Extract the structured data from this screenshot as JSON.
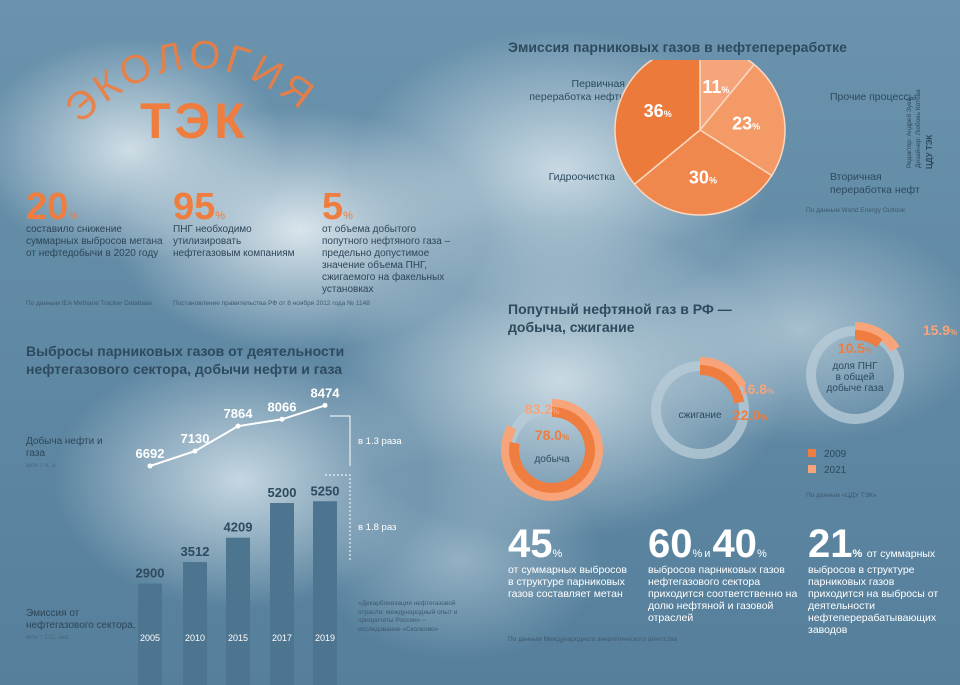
{
  "title": {
    "line1": "ЭКОЛОГИЯ",
    "line2": "ТЭК"
  },
  "credits": {
    "editor": "Редактор: Андрей Зуев",
    "designer": "Дизайнер: Любовь Котова",
    "logo": "ЦДУ ТЭК"
  },
  "top_stats": [
    {
      "value": "20",
      "unit": "%",
      "text": "составило снижение суммарных выбросов метана от нефтедобычи в 2020 году",
      "source": "По данным IEA Methane Tracker Database"
    },
    {
      "value": "95",
      "unit": "%",
      "text": "ПНГ необходимо утилизировать нефтегазовым компаниям",
      "source": "Постановление правительства РФ от 8 ноября 2012 года № 1148"
    },
    {
      "value": "5",
      "unit": "%",
      "text": "от объема добытого попутного нефтяного газа – предельно допустимое значение объема ПНГ, сжигаемого на факельных установках",
      "source": ""
    }
  ],
  "colors": {
    "orange": "#ee7d3f",
    "light_orange": "#f7a47a",
    "bar": "#4d7590",
    "ring_track": "#b9ccd8",
    "text_dark": "#2d4a5e"
  },
  "chart_data": [
    {
      "type": "pie",
      "title": "Эмиссия парниковых газов в нефтепереработке",
      "slices": [
        {
          "label": "Первичная переработка нефти",
          "value": 11
        },
        {
          "label": "Прочие процессы",
          "value": 23
        },
        {
          "label": "Вторичная переработка нефти",
          "value": 30
        },
        {
          "label": "Гидроочистка",
          "value": 36
        }
      ],
      "value_suffix": "%",
      "source": "По данным World Energy Outlook"
    },
    {
      "type": "line",
      "title": "Выбросы парниковых газов от деятельности нефтегазового сектора, добычи нефти и газа",
      "x": [
        "2005",
        "2010",
        "2015",
        "2017",
        "2019"
      ],
      "series": [
        {
          "name": "Добыча нефти и газа",
          "values": [
            6692,
            7130,
            7864,
            8066,
            8474
          ]
        }
      ],
      "ylabel": "Добыча нефти и газа",
      "yunit": "млн т н. э.",
      "growth_note": "в 1.3 раза"
    },
    {
      "type": "bar",
      "categories": [
        "2005",
        "2010",
        "2015",
        "2017",
        "2019"
      ],
      "series": [
        {
          "name": "Эмиссия от нефтегазового сектора",
          "values": [
            2900,
            3512,
            4209,
            5200,
            5250
          ]
        }
      ],
      "ylabel": "Эмиссия от нефтегазового сектора,",
      "yunit": "млн т CO₂ экв.",
      "growth_note": "в 1.8 раз",
      "source": "«Декарбонизация нефтегазовой отрасли: международный опыт и приоритеты России» – исследование «Сколково»"
    },
    {
      "type": "donut",
      "title": "Попутный нефтяной газ в РФ — добыча, сжигание",
      "legend": [
        "2009",
        "2021"
      ],
      "rings": [
        {
          "label": "добыча",
          "values": {
            "2009": 78.0,
            "2021": 83.2
          }
        },
        {
          "label": "сжигание",
          "values": {
            "2009": 22.0,
            "2021": 16.8
          }
        },
        {
          "label": "доля ПНГ в общей добыче газа",
          "values": {
            "2009": 10.5,
            "2021": 15.9
          }
        }
      ],
      "value_suffix": "%",
      "source": "По данным «ЦДУ ТЭК»"
    }
  ],
  "bottom_stats": [
    {
      "value": "45",
      "unit": "%",
      "text": "от суммарных выбросов в структуре парниковых газов составляет метан"
    },
    {
      "value": "60",
      "unit": "%",
      "conj": "и",
      "value2": "40",
      "unit2": "%",
      "text": "выбросов парниковых газов нефтегазового сектора приходится соответственно на долю нефтяной и газовой отраслей"
    },
    {
      "value": "21",
      "unit": "%",
      "text_inline": "от суммарных",
      "text": "выбросов в структуре парниковых газов приходится на выбросы от деятельности нефтеперерабатывающих заводов"
    }
  ],
  "bottom_source": "По данным Международного энергетического агентства"
}
